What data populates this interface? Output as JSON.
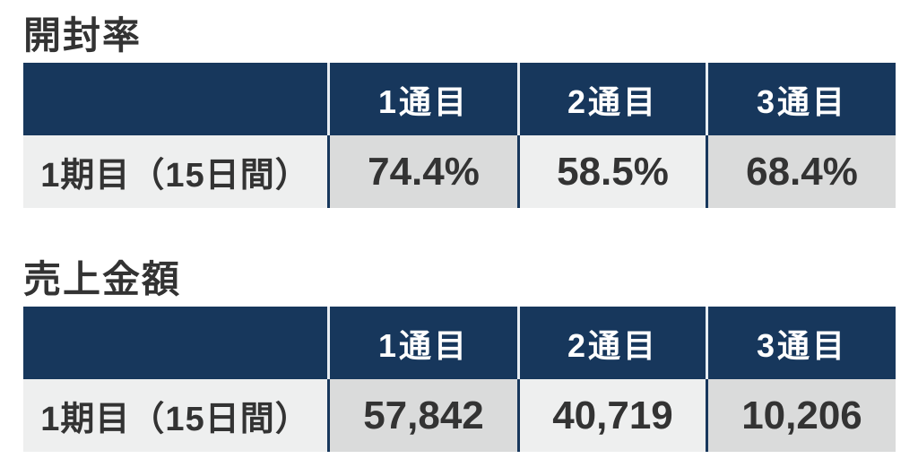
{
  "colors": {
    "header_bg": "#17375C",
    "header_text": "#FFFFFF",
    "header_divider": "#E8EDF2",
    "data_divider": "#17375C",
    "cell_light_bg": "#EEEFEF",
    "cell_dark_bg": "#DADBDB",
    "text": "#333333",
    "page_bg": "#FFFFFF"
  },
  "tables": [
    {
      "title": "開封率",
      "corner_label": "",
      "columns": [
        "1通目",
        "2通目",
        "3通目"
      ],
      "rows": [
        {
          "label": "1期目（15日間）",
          "values": [
            "74.4%",
            "58.5%",
            "68.4%"
          ]
        }
      ]
    },
    {
      "title": "売上金額",
      "corner_label": "",
      "columns": [
        "1通目",
        "2通目",
        "3通目"
      ],
      "rows": [
        {
          "label": "1期目（15日間）",
          "values": [
            "57,842",
            "40,719",
            "10,206"
          ]
        }
      ]
    }
  ],
  "chart_data": [
    {
      "type": "table",
      "title": "開封率",
      "columns": [
        "",
        "1通目",
        "2通目",
        "3通目"
      ],
      "rows": [
        [
          "1期目（15日間）",
          "74.4%",
          "58.5%",
          "68.4%"
        ]
      ]
    },
    {
      "type": "table",
      "title": "売上金額",
      "columns": [
        "",
        "1通目",
        "2通目",
        "3通目"
      ],
      "rows": [
        [
          "1期目（15日間）",
          "57,842",
          "40,719",
          "10,206"
        ]
      ]
    }
  ]
}
